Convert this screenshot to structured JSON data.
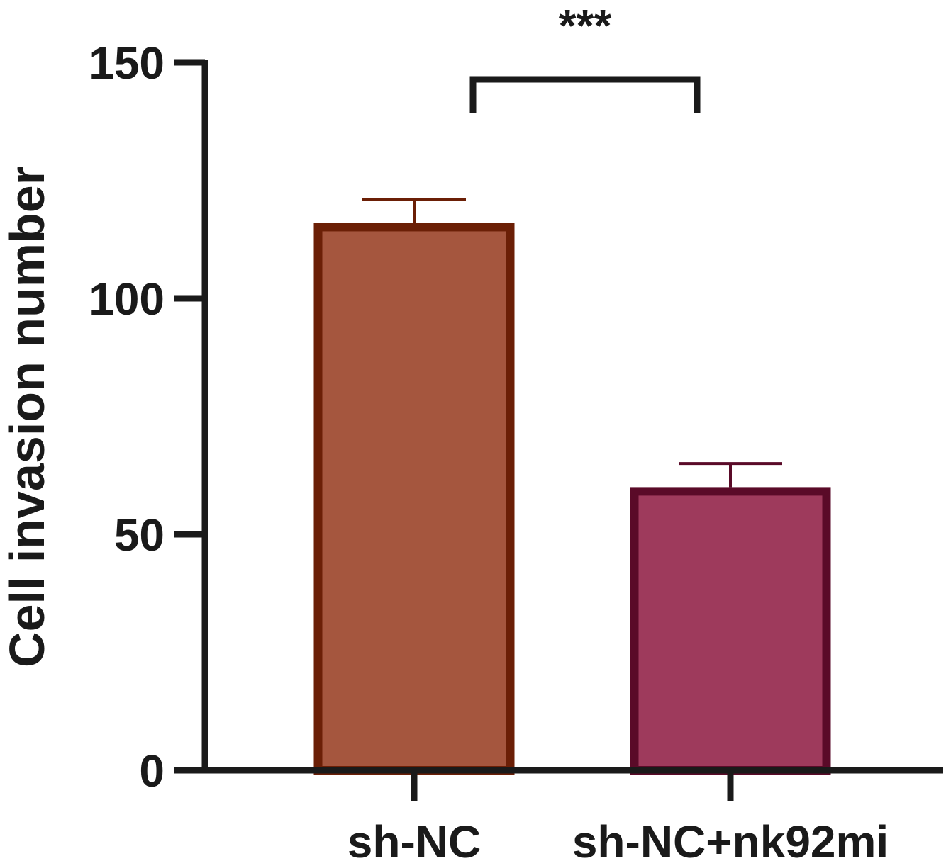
{
  "chart_data": {
    "type": "bar",
    "title": "",
    "xlabel": "",
    "ylabel": "Cell invasion number",
    "ylim": [
      0,
      150
    ],
    "yticks": [
      0,
      50,
      100,
      150
    ],
    "grid": false,
    "categories": [
      "sh-NC",
      "sh-NC+nk92mi"
    ],
    "values": [
      116,
      60
    ],
    "errors": [
      5,
      5
    ],
    "fill_colors": [
      "#a5563e",
      "#9e3a5c"
    ],
    "edge_colors": [
      "#6b1f06",
      "#5a0a28"
    ],
    "significance": {
      "between": [
        0,
        1
      ],
      "label": "***"
    }
  }
}
